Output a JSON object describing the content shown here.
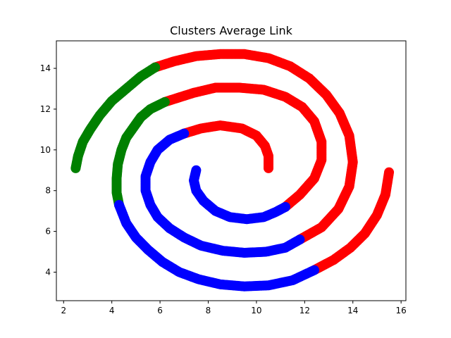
{
  "chart_data": {
    "type": "scatter",
    "title": "Clusters Average Link",
    "xlabel": "",
    "ylabel": "",
    "xlim": [
      1.7,
      16.2
    ],
    "ylim": [
      2.6,
      15.35
    ],
    "xticks": [
      2,
      4,
      6,
      8,
      10,
      12,
      14,
      16
    ],
    "yticks": [
      4,
      6,
      8,
      10,
      12,
      14
    ],
    "grid": false,
    "legend": "none",
    "colors": {
      "red": "#ff0000",
      "green": "#008000",
      "blue": "#0000ff"
    },
    "series": [
      {
        "color": "red",
        "points": [
          [
            10.5,
            9.1
          ],
          [
            10.5,
            9.7
          ],
          [
            10.35,
            10.2
          ],
          [
            10.0,
            10.7
          ],
          [
            9.4,
            11.05
          ],
          [
            8.5,
            11.2
          ],
          [
            7.7,
            11.05
          ],
          [
            7.0,
            10.8
          ],
          [
            11.2,
            7.2
          ],
          [
            11.8,
            7.8
          ],
          [
            12.4,
            8.6
          ],
          [
            12.7,
            9.5
          ],
          [
            12.7,
            10.4
          ],
          [
            12.4,
            11.4
          ],
          [
            11.9,
            12.1
          ],
          [
            11.2,
            12.6
          ],
          [
            10.3,
            12.95
          ],
          [
            9.3,
            13.05
          ],
          [
            8.3,
            13.05
          ],
          [
            7.4,
            12.8
          ],
          [
            6.2,
            12.35
          ],
          [
            11.8,
            5.6
          ],
          [
            12.7,
            6.2
          ],
          [
            13.4,
            7.1
          ],
          [
            13.85,
            8.2
          ],
          [
            14.0,
            9.4
          ],
          [
            13.85,
            10.7
          ],
          [
            13.45,
            11.8
          ],
          [
            12.9,
            12.7
          ],
          [
            12.2,
            13.5
          ],
          [
            11.4,
            14.1
          ],
          [
            10.5,
            14.5
          ],
          [
            9.5,
            14.7
          ],
          [
            8.5,
            14.7
          ],
          [
            7.5,
            14.6
          ],
          [
            6.6,
            14.35
          ],
          [
            5.8,
            14.05
          ],
          [
            12.4,
            4.1
          ],
          [
            13.2,
            4.6
          ],
          [
            13.9,
            5.2
          ],
          [
            14.5,
            5.9
          ],
          [
            15.0,
            6.8
          ],
          [
            15.35,
            7.8
          ],
          [
            15.5,
            8.9
          ]
        ]
      },
      {
        "color": "green",
        "points": [
          [
            2.5,
            9.1
          ],
          [
            2.6,
            9.7
          ],
          [
            2.8,
            10.4
          ],
          [
            3.1,
            11.0
          ],
          [
            3.5,
            11.7
          ],
          [
            4.0,
            12.4
          ],
          [
            4.6,
            13.0
          ],
          [
            5.2,
            13.6
          ],
          [
            5.8,
            14.05
          ],
          [
            4.3,
            7.3
          ],
          [
            4.2,
            7.9
          ],
          [
            4.2,
            8.6
          ],
          [
            4.25,
            9.3
          ],
          [
            4.4,
            10.0
          ],
          [
            4.6,
            10.6
          ],
          [
            4.9,
            11.1
          ],
          [
            5.2,
            11.6
          ],
          [
            5.6,
            12.0
          ],
          [
            6.2,
            12.35
          ]
        ]
      },
      {
        "color": "blue",
        "points": [
          [
            7.5,
            9.0
          ],
          [
            7.4,
            8.5
          ],
          [
            7.5,
            8.0
          ],
          [
            7.8,
            7.5
          ],
          [
            8.3,
            7.0
          ],
          [
            8.9,
            6.7
          ],
          [
            9.6,
            6.6
          ],
          [
            10.3,
            6.7
          ],
          [
            10.8,
            6.95
          ],
          [
            11.2,
            7.2
          ],
          [
            7.0,
            10.8
          ],
          [
            6.4,
            10.5
          ],
          [
            5.9,
            10.0
          ],
          [
            5.6,
            9.4
          ],
          [
            5.4,
            8.7
          ],
          [
            5.4,
            8.0
          ],
          [
            5.6,
            7.3
          ],
          [
            5.9,
            6.7
          ],
          [
            6.4,
            6.15
          ],
          [
            7.0,
            5.7
          ],
          [
            7.7,
            5.3
          ],
          [
            8.6,
            5.05
          ],
          [
            9.5,
            4.95
          ],
          [
            10.4,
            5.0
          ],
          [
            11.2,
            5.2
          ],
          [
            11.8,
            5.6
          ],
          [
            4.3,
            7.3
          ],
          [
            4.6,
            6.4
          ],
          [
            5.0,
            5.7
          ],
          [
            5.5,
            5.1
          ],
          [
            6.1,
            4.5
          ],
          [
            6.8,
            4.0
          ],
          [
            7.6,
            3.65
          ],
          [
            8.5,
            3.4
          ],
          [
            9.5,
            3.3
          ],
          [
            10.5,
            3.35
          ],
          [
            11.5,
            3.6
          ],
          [
            12.4,
            4.1
          ]
        ]
      }
    ]
  }
}
